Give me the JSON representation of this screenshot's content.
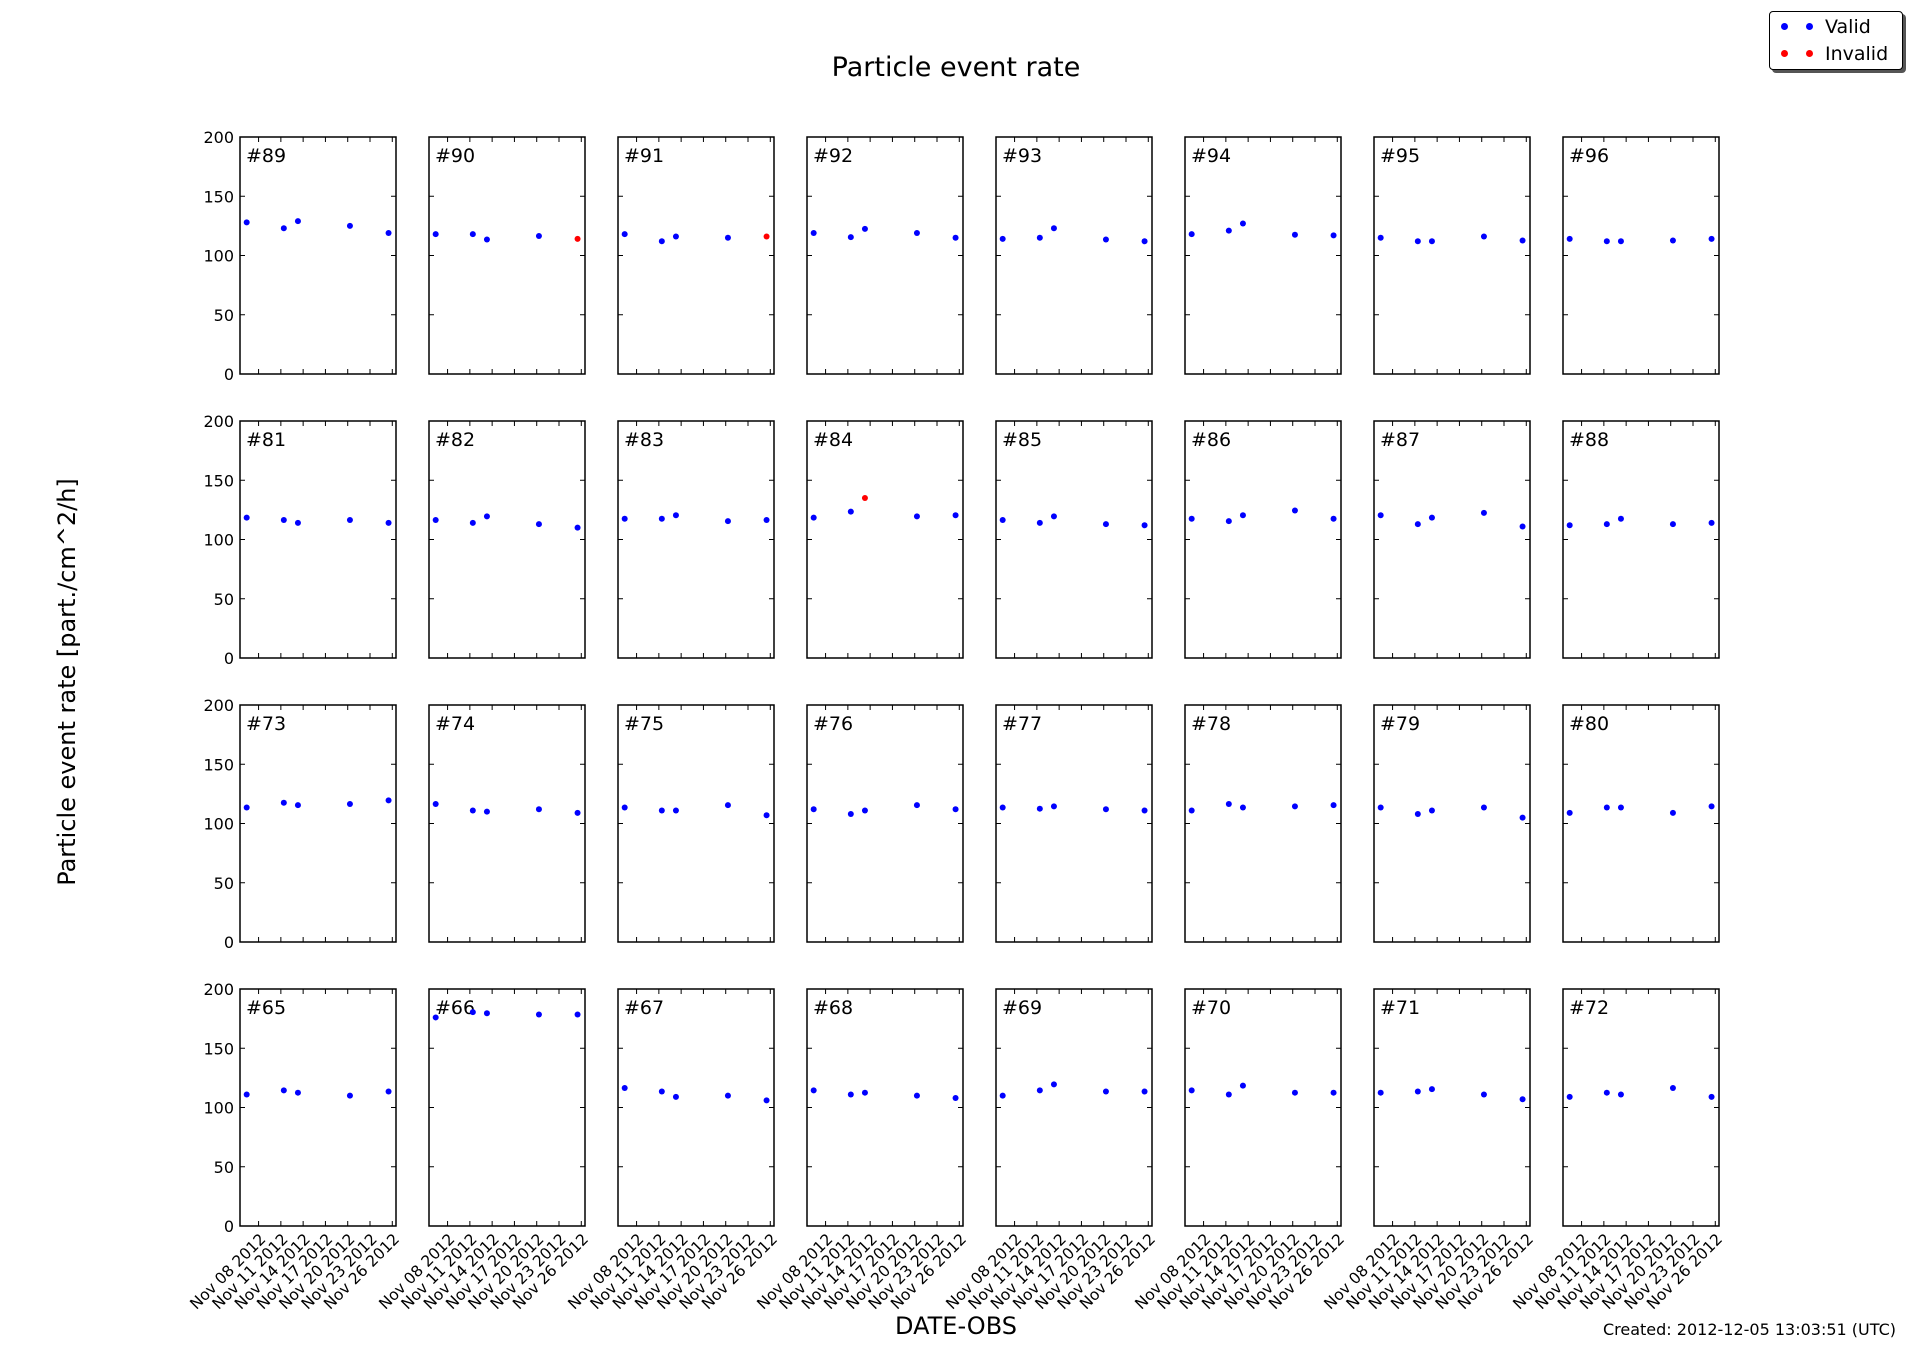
{
  "colors": {
    "valid": "#0000ff",
    "invalid": "#ff0000"
  },
  "footer": {
    "created": "Created: 2012-12-05 13:03:51 (UTC)"
  },
  "chart_data": {
    "type": "scatter",
    "title": "Particle event rate",
    "xlabel": "DATE-OBS",
    "ylabel": "Particle event rate [part./cm^2/h]",
    "ylim": [
      0,
      200
    ],
    "yticks": [
      "0",
      "50",
      "100",
      "150",
      "200"
    ],
    "ytick_values": [
      0,
      50,
      100,
      150,
      200
    ],
    "xlim_days_nov_2012": [
      5.5,
      26.5
    ],
    "xtick_values_days": [
      8,
      11,
      14,
      17,
      20,
      23,
      26
    ],
    "xticks": [
      "Nov 08 2012",
      "Nov 11 2012",
      "Nov 14 2012",
      "Nov 17 2012",
      "Nov 20 2012",
      "Nov 23 2012",
      "Nov 26 2012"
    ],
    "x_days_nov_2012": [
      6.4,
      11.4,
      13.3,
      20.3,
      25.5
    ],
    "legend": {
      "position": "top-right",
      "entries": [
        "Valid",
        "Invalid"
      ]
    },
    "grid": false,
    "panels": [
      {
        "label": "#89",
        "values": [
          128,
          123,
          129,
          125,
          119
        ],
        "invalid": []
      },
      {
        "label": "#90",
        "values": [
          118,
          118,
          113.5,
          116.5,
          114
        ],
        "invalid": [
          4
        ]
      },
      {
        "label": "#91",
        "values": [
          118,
          112,
          116,
          115,
          116
        ],
        "invalid": [
          4
        ]
      },
      {
        "label": "#92",
        "values": [
          119,
          115.5,
          122.5,
          119,
          115
        ],
        "invalid": []
      },
      {
        "label": "#93",
        "values": [
          114,
          115,
          123,
          113.5,
          112
        ],
        "invalid": []
      },
      {
        "label": "#94",
        "values": [
          118,
          121,
          127,
          117.5,
          117
        ],
        "invalid": []
      },
      {
        "label": "#95",
        "values": [
          115,
          112,
          112,
          116,
          112.7
        ],
        "invalid": []
      },
      {
        "label": "#96",
        "values": [
          114,
          112,
          112,
          112.7,
          114
        ],
        "invalid": []
      },
      {
        "label": "#81",
        "values": [
          118.5,
          116.5,
          114,
          116.5,
          114
        ],
        "invalid": []
      },
      {
        "label": "#82",
        "values": [
          116.5,
          114,
          119.5,
          113,
          110
        ],
        "invalid": []
      },
      {
        "label": "#83",
        "values": [
          117.5,
          117.5,
          120.5,
          115.5,
          116.5
        ],
        "invalid": []
      },
      {
        "label": "#84",
        "values": [
          118.5,
          123.5,
          135,
          119.5,
          120.5
        ],
        "invalid": [
          2
        ]
      },
      {
        "label": "#85",
        "values": [
          116.5,
          114,
          119.5,
          113,
          112
        ],
        "invalid": []
      },
      {
        "label": "#86",
        "values": [
          117.5,
          115.5,
          120.5,
          124.5,
          117.5
        ],
        "invalid": []
      },
      {
        "label": "#87",
        "values": [
          120.5,
          113,
          118.5,
          122.5,
          111
        ],
        "invalid": []
      },
      {
        "label": "#88",
        "values": [
          112,
          113,
          117.5,
          113,
          114
        ],
        "invalid": []
      },
      {
        "label": "#73",
        "values": [
          113.5,
          117.5,
          115.5,
          116.5,
          119.5
        ],
        "invalid": []
      },
      {
        "label": "#74",
        "values": [
          116.5,
          111,
          110,
          112,
          109
        ],
        "invalid": []
      },
      {
        "label": "#75",
        "values": [
          113.5,
          111,
          111,
          115.5,
          107
        ],
        "invalid": []
      },
      {
        "label": "#76",
        "values": [
          112,
          108,
          111,
          115.5,
          112
        ],
        "invalid": []
      },
      {
        "label": "#77",
        "values": [
          113.5,
          112.5,
          114.5,
          112,
          111
        ],
        "invalid": []
      },
      {
        "label": "#78",
        "values": [
          111,
          116.5,
          113.5,
          114.5,
          115.5
        ],
        "invalid": []
      },
      {
        "label": "#79",
        "values": [
          113.5,
          108,
          111,
          113.5,
          105
        ],
        "invalid": []
      },
      {
        "label": "#80",
        "values": [
          109,
          113.5,
          113.5,
          109,
          114.5
        ],
        "invalid": []
      },
      {
        "label": "#65",
        "values": [
          111,
          114.5,
          112.5,
          110,
          113.5
        ],
        "invalid": []
      },
      {
        "label": "#66",
        "values": [
          176,
          180.5,
          179.5,
          178.5,
          178.5
        ],
        "invalid": []
      },
      {
        "label": "#67",
        "values": [
          116.5,
          113.5,
          109,
          110,
          106
        ],
        "invalid": []
      },
      {
        "label": "#68",
        "values": [
          114.5,
          111,
          112.5,
          110,
          108
        ],
        "invalid": []
      },
      {
        "label": "#69",
        "values": [
          110,
          114.5,
          119.5,
          113.5,
          113.5
        ],
        "invalid": []
      },
      {
        "label": "#70",
        "values": [
          114.5,
          111,
          118.5,
          112.5,
          112.5
        ],
        "invalid": []
      },
      {
        "label": "#71",
        "values": [
          112.5,
          113.5,
          115.5,
          111,
          107
        ],
        "invalid": []
      },
      {
        "label": "#72",
        "values": [
          109,
          112.5,
          111,
          116.5,
          109
        ],
        "invalid": []
      }
    ]
  }
}
